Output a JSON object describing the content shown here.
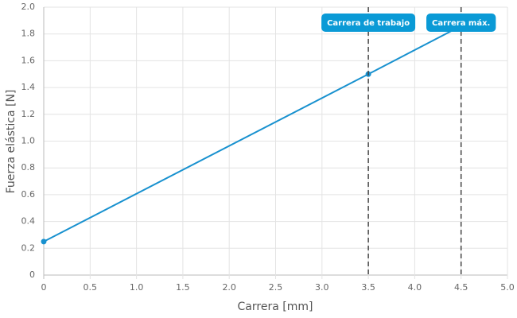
{
  "chart_data": {
    "type": "line",
    "x_label": "Carrera [mm]",
    "y_label": "Fuerza elástica [N]",
    "series": [
      {
        "name": "Fuerza",
        "color": "#1891cf",
        "x": [
          0,
          3.5,
          4.5
        ],
        "values": [
          0.25,
          1.5,
          1.86
        ]
      }
    ],
    "xlim": [
      0,
      5
    ],
    "ylim": [
      0,
      2
    ],
    "xticks": [
      0,
      0.5,
      {
        "value": 1,
        "label": "1.0"
      },
      1.5,
      {
        "value": 2,
        "label": "2.0"
      },
      2.5,
      {
        "value": 3,
        "label": "3.0"
      },
      3.5,
      {
        "value": 4,
        "label": "4.0"
      },
      4.5,
      {
        "value": 5,
        "label": "5.0"
      }
    ],
    "yticks": [
      0,
      0.2,
      0.4,
      0.6,
      0.8,
      {
        "value": 1,
        "label": "1.0"
      },
      1.2,
      1.4,
      1.6,
      1.8,
      {
        "value": 2,
        "label": "2.0"
      }
    ],
    "grid": true,
    "annotations": [
      {
        "x": 3.5,
        "label": "Carrera de trabajo",
        "color": "#0a9ad6"
      },
      {
        "x": 4.5,
        "label": "Carrera máx.",
        "color": "#0a9ad6"
      }
    ]
  }
}
